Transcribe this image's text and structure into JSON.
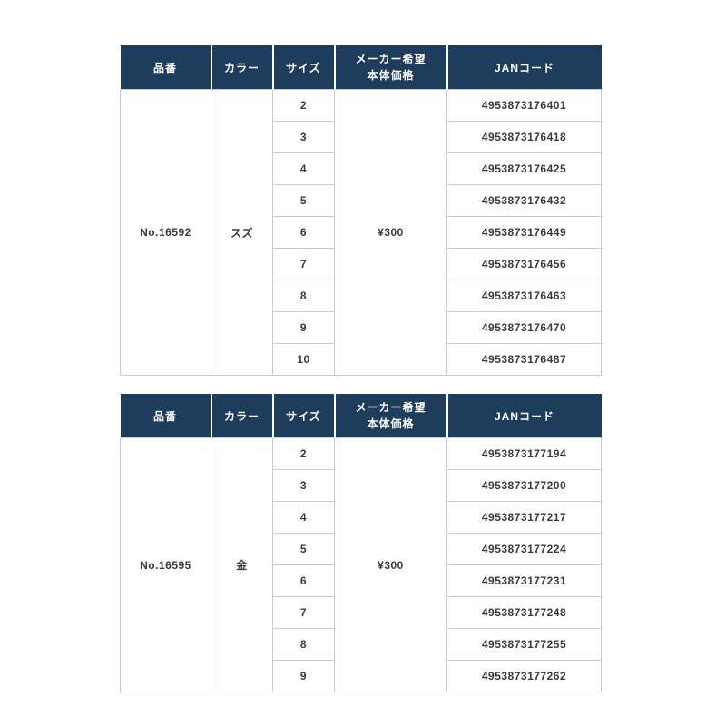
{
  "colors": {
    "header_bg": "#1e3d5c",
    "header_text": "#ffffff",
    "body_text": "#3a3a3a",
    "cell_border": "#cccccc",
    "header_divider": "#ffffff",
    "page_bg": "#ffffff"
  },
  "tables": [
    {
      "headers": {
        "product": "品番",
        "color": "カラー",
        "size": "サイズ",
        "price_line1": "メーカー希望",
        "price_line2": "本体価格",
        "jan": "JANコード"
      },
      "product": "No.16592",
      "color": "スズ",
      "price": "¥300",
      "rows": [
        {
          "size": "2",
          "jan": "4953873176401"
        },
        {
          "size": "3",
          "jan": "4953873176418"
        },
        {
          "size": "4",
          "jan": "4953873176425"
        },
        {
          "size": "5",
          "jan": "4953873176432"
        },
        {
          "size": "6",
          "jan": "4953873176449"
        },
        {
          "size": "7",
          "jan": "4953873176456"
        },
        {
          "size": "8",
          "jan": "4953873176463"
        },
        {
          "size": "9",
          "jan": "4953873176470"
        },
        {
          "size": "10",
          "jan": "4953873176487"
        }
      ]
    },
    {
      "headers": {
        "product": "品番",
        "color": "カラー",
        "size": "サイズ",
        "price_line1": "メーカー希望",
        "price_line2": "本体価格",
        "jan": "JANコード"
      },
      "product": "No.16595",
      "color": "金",
      "price": "¥300",
      "rows": [
        {
          "size": "2",
          "jan": "4953873177194"
        },
        {
          "size": "3",
          "jan": "4953873177200"
        },
        {
          "size": "4",
          "jan": "4953873177217"
        },
        {
          "size": "5",
          "jan": "4953873177224"
        },
        {
          "size": "6",
          "jan": "4953873177231"
        },
        {
          "size": "7",
          "jan": "4953873177248"
        },
        {
          "size": "8",
          "jan": "4953873177255"
        },
        {
          "size": "9",
          "jan": "4953873177262"
        }
      ]
    }
  ]
}
